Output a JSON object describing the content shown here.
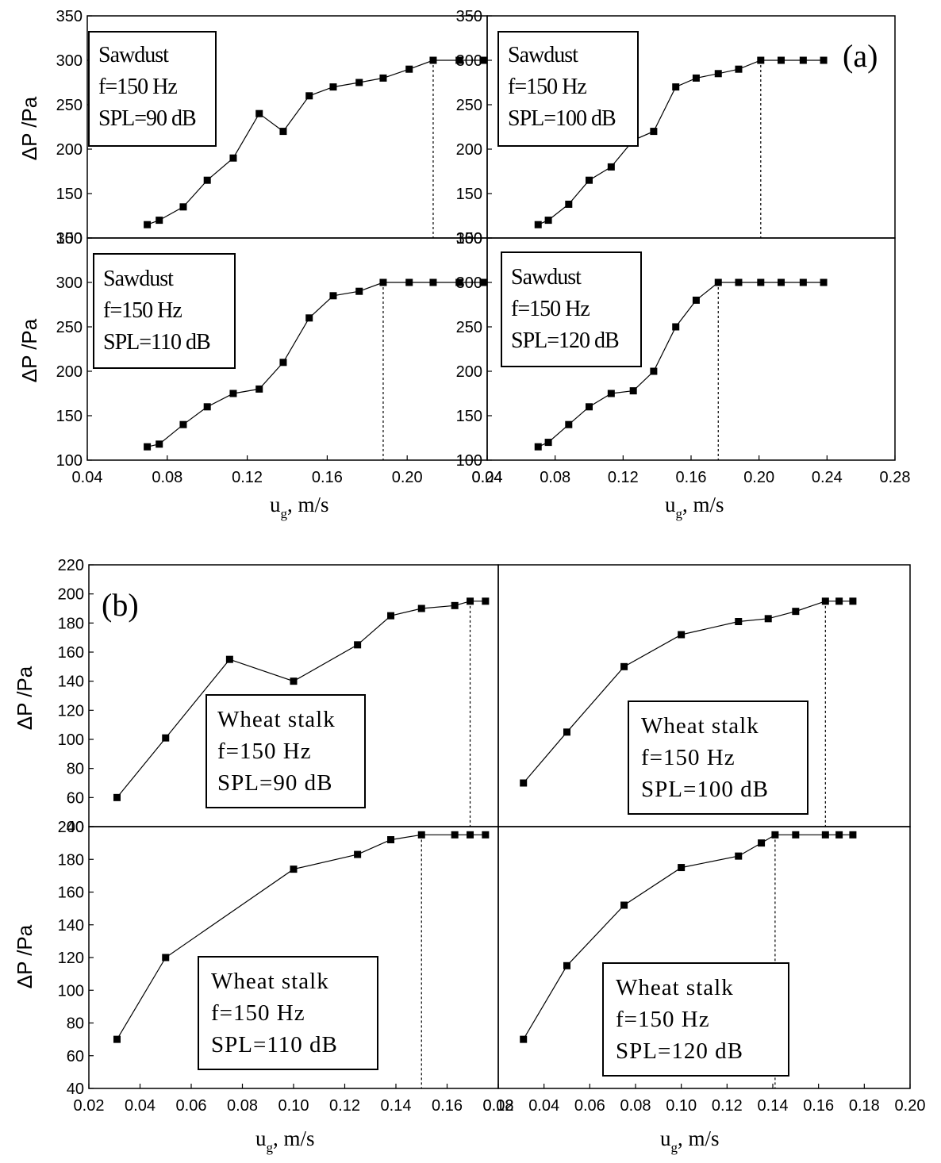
{
  "figure": {
    "panel_label_a": "(a)",
    "panel_label_b": "(b)",
    "ylabel": "ΔP /Pa",
    "xlabel_main": "u",
    "xlabel_sub": "g",
    "xlabel_unit_a": ", m/s",
    "xlabel_unit_b": ",  m/s"
  },
  "chart_data": [
    {
      "type": "line",
      "group": "a",
      "annotation": [
        "Sawdust",
        "f=150 Hz",
        "SPL=90 dB"
      ],
      "xlim": [
        0.04,
        0.24
      ],
      "ylim": [
        100,
        350
      ],
      "series": [
        {
          "x": [
            0.07,
            0.076,
            0.088,
            0.1,
            0.113,
            0.126,
            0.138,
            0.151,
            0.163,
            0.176,
            0.188,
            0.201,
            0.213,
            0.226,
            0.238
          ],
          "y": [
            115,
            120,
            135,
            165,
            190,
            240,
            220,
            260,
            270,
            275,
            280,
            290,
            300,
            300,
            300
          ]
        }
      ],
      "dashed_x": 0.213
    },
    {
      "type": "line",
      "group": "a",
      "annotation": [
        "Sawdust",
        "f=150 Hz",
        "SPL=100 dB"
      ],
      "xlim": [
        0.04,
        0.28
      ],
      "ylim": [
        100,
        350
      ],
      "series": [
        {
          "x": [
            0.07,
            0.076,
            0.088,
            0.1,
            0.113,
            0.126,
            0.138,
            0.151,
            0.163,
            0.176,
            0.188,
            0.201,
            0.213,
            0.226,
            0.238
          ],
          "y": [
            115,
            120,
            138,
            165,
            180,
            210,
            220,
            270,
            280,
            285,
            290,
            300,
            300,
            300,
            300
          ]
        }
      ],
      "dashed_x": 0.201
    },
    {
      "type": "line",
      "group": "a",
      "annotation": [
        "Sawdust",
        "f=150 Hz",
        "SPL=110 dB"
      ],
      "xlim": [
        0.04,
        0.24
      ],
      "ylim": [
        100,
        350
      ],
      "series": [
        {
          "x": [
            0.07,
            0.076,
            0.088,
            0.1,
            0.113,
            0.126,
            0.138,
            0.151,
            0.163,
            0.176,
            0.188,
            0.201,
            0.213,
            0.226,
            0.238
          ],
          "y": [
            115,
            118,
            140,
            160,
            175,
            180,
            210,
            260,
            285,
            290,
            300,
            300,
            300,
            300,
            300
          ]
        }
      ],
      "dashed_x": 0.188
    },
    {
      "type": "line",
      "group": "a",
      "annotation": [
        "Sawdust",
        "f=150 Hz",
        "SPL=120 dB"
      ],
      "xlim": [
        0.04,
        0.28
      ],
      "ylim": [
        100,
        350
      ],
      "series": [
        {
          "x": [
            0.07,
            0.076,
            0.088,
            0.1,
            0.113,
            0.126,
            0.138,
            0.151,
            0.163,
            0.176,
            0.188,
            0.201,
            0.213,
            0.226,
            0.238
          ],
          "y": [
            115,
            120,
            140,
            160,
            175,
            178,
            200,
            250,
            280,
            300,
            300,
            300,
            300,
            300,
            300
          ]
        }
      ],
      "dashed_x": 0.176
    },
    {
      "type": "line",
      "group": "b",
      "annotation": [
        "Wheat stalk",
        "f=150 Hz",
        "SPL=90 dB"
      ],
      "xlim": [
        0.02,
        0.18
      ],
      "ylim": [
        40,
        220
      ],
      "series": [
        {
          "x": [
            0.031,
            0.05,
            0.075,
            0.1,
            0.125,
            0.138,
            0.15,
            0.163,
            0.169,
            0.175
          ],
          "y": [
            60,
            101,
            155,
            140,
            165,
            185,
            190,
            192,
            195,
            195
          ]
        }
      ],
      "dashed_x": 0.169
    },
    {
      "type": "line",
      "group": "b",
      "annotation": [
        "Wheat stalk",
        "f=150 Hz",
        "SPL=100 dB"
      ],
      "xlim": [
        0.02,
        0.2
      ],
      "ylim": [
        40,
        220
      ],
      "series": [
        {
          "x": [
            0.031,
            0.05,
            0.075,
            0.1,
            0.125,
            0.138,
            0.15,
            0.163,
            0.169,
            0.175
          ],
          "y": [
            70,
            105,
            150,
            172,
            181,
            183,
            188,
            195,
            195,
            195
          ]
        }
      ],
      "dashed_x": 0.163
    },
    {
      "type": "line",
      "group": "b",
      "annotation": [
        "Wheat stalk",
        "f=150 Hz",
        "SPL=110 dB"
      ],
      "xlim": [
        0.02,
        0.18
      ],
      "ylim": [
        40,
        200
      ],
      "series": [
        {
          "x": [
            0.031,
            0.05,
            0.1,
            0.125,
            0.138,
            0.15,
            0.163,
            0.169,
            0.175
          ],
          "y": [
            70,
            120,
            174,
            183,
            192,
            195,
            195,
            195,
            195
          ]
        }
      ],
      "dashed_x": 0.15
    },
    {
      "type": "line",
      "group": "b",
      "annotation": [
        "Wheat stalk",
        "f=150 Hz",
        "SPL=120 dB"
      ],
      "xlim": [
        0.02,
        0.2
      ],
      "ylim": [
        40,
        200
      ],
      "series": [
        {
          "x": [
            0.031,
            0.05,
            0.075,
            0.1,
            0.125,
            0.135,
            0.141,
            0.15,
            0.163,
            0.169,
            0.175
          ],
          "y": [
            70,
            115,
            152,
            175,
            182,
            190,
            195,
            195,
            195,
            195,
            195
          ]
        }
      ],
      "dashed_x": 0.141
    }
  ],
  "axes": {
    "a_y_ticks": [
      "100",
      "150",
      "200",
      "250",
      "300",
      "350"
    ],
    "a_x_ticks_left": [
      "0.04",
      "0.08",
      "0.12",
      "0.16",
      "0.20",
      "0.24"
    ],
    "a_x_ticks_right": [
      "0.04",
      "0.08",
      "0.12",
      "0.16",
      "0.20",
      "0.24",
      "0.28"
    ],
    "b_y_ticks_top": [
      "40",
      "60",
      "80",
      "100",
      "120",
      "140",
      "160",
      "180",
      "200",
      "220"
    ],
    "b_y_ticks_bottom": [
      "40",
      "60",
      "80",
      "100",
      "120",
      "140",
      "160",
      "180",
      "200"
    ],
    "b_x_ticks_left": [
      "0.02",
      "0.04",
      "0.06",
      "0.08",
      "0.10",
      "0.12",
      "0.14",
      "0.16",
      "0.18"
    ],
    "b_x_ticks_right": [
      "0.02",
      "0.04",
      "0.06",
      "0.08",
      "0.10",
      "0.12",
      "0.14",
      "0.16",
      "0.18",
      "0.20"
    ]
  }
}
